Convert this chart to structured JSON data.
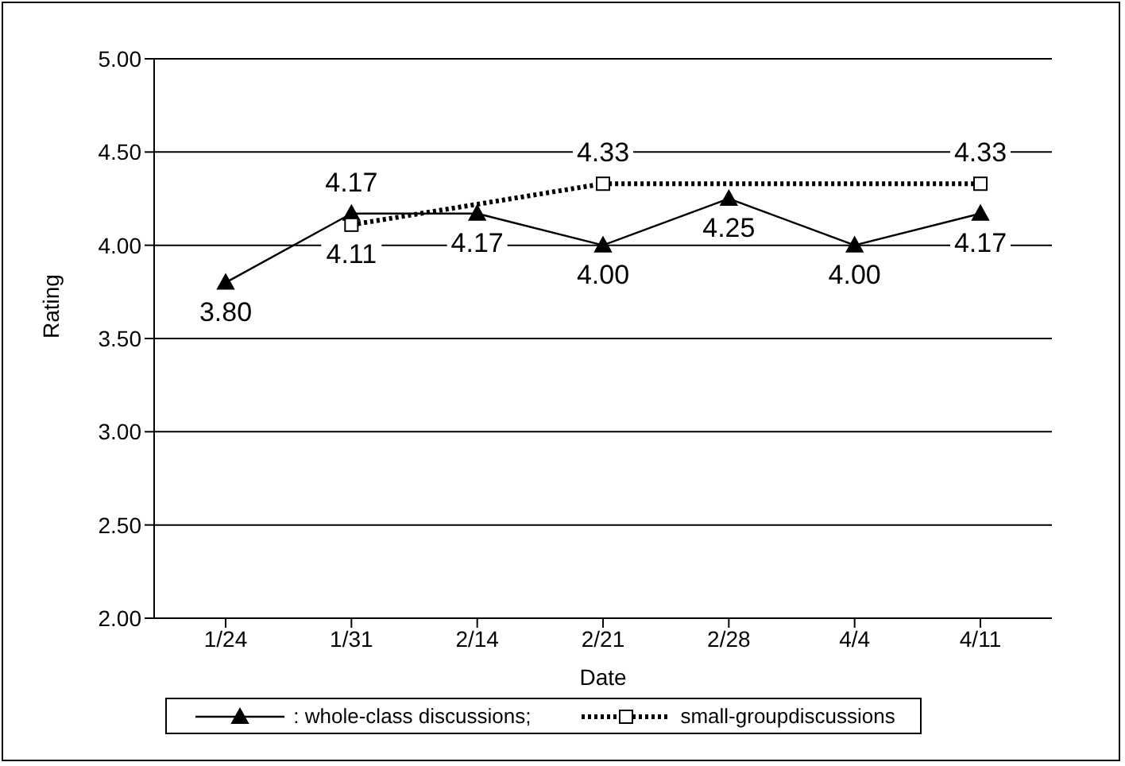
{
  "chart_data": {
    "type": "line",
    "xlabel": "Date",
    "ylabel": "Rating",
    "categories": [
      "1/24",
      "1/31",
      "2/14",
      "2/21",
      "2/28",
      "4/4",
      "4/11"
    ],
    "series": [
      {
        "name": ": whole-class discussions;",
        "color": "#000000",
        "marker": "triangle",
        "line_style": "solid",
        "values": [
          3.8,
          4.17,
          4.17,
          4.0,
          4.25,
          4.0,
          4.17
        ],
        "value_labels": [
          "3.80",
          "4.17",
          "4.17",
          "4.00",
          "4.25",
          "4.00",
          "4.17"
        ]
      },
      {
        "name": "small-groupdiscussions",
        "color": "#000000",
        "marker": "square",
        "line_style": "dotted",
        "values": [
          null,
          4.11,
          null,
          4.33,
          null,
          null,
          4.33
        ],
        "value_labels": [
          null,
          "4.11",
          null,
          "4.33",
          null,
          null,
          "4.33"
        ]
      }
    ],
    "ylim": [
      2,
      5
    ],
    "yticks": [
      {
        "value": 2,
        "label": "2.00"
      },
      {
        "value": 2.5,
        "label": "2.50"
      },
      {
        "value": 3,
        "label": "3.00"
      },
      {
        "value": 3.5,
        "label": "3.50"
      },
      {
        "value": 4,
        "label": "4.00"
      },
      {
        "value": 4.5,
        "label": "4.50"
      },
      {
        "value": 5,
        "label": "5.00"
      }
    ],
    "grid": "y",
    "legend": "bottom"
  }
}
